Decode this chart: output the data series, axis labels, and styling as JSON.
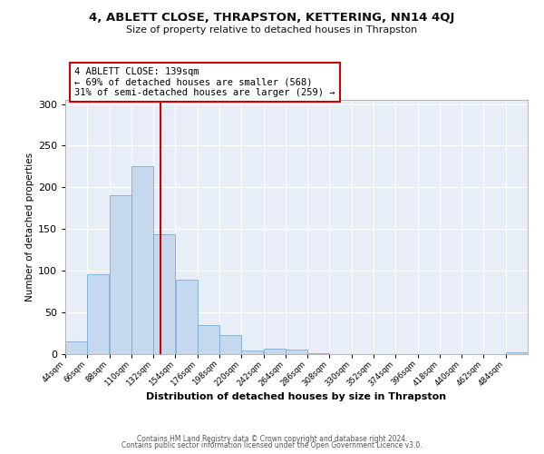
{
  "title": "4, ABLETT CLOSE, THRAPSTON, KETTERING, NN14 4QJ",
  "subtitle": "Size of property relative to detached houses in Thrapston",
  "xlabel": "Distribution of detached houses by size in Thrapston",
  "ylabel": "Number of detached properties",
  "bar_color": "#c5d8ee",
  "bar_edge_color": "#7aadd4",
  "plot_bg_color": "#e8eef8",
  "fig_bg_color": "#ffffff",
  "grid_color": "#ffffff",
  "vline_x": 139,
  "vline_color": "#cc0000",
  "annotation_title": "4 ABLETT CLOSE: 139sqm",
  "annotation_line1": "← 69% of detached houses are smaller (568)",
  "annotation_line2": "31% of semi-detached houses are larger (259) →",
  "annotation_box_color": "#cc0000",
  "bin_edges": [
    44,
    66,
    88,
    110,
    132,
    154,
    176,
    198,
    220,
    242,
    264,
    286,
    308,
    330,
    352,
    374,
    396,
    418,
    440,
    462,
    484,
    506
  ],
  "bin_counts": [
    15,
    96,
    191,
    225,
    144,
    89,
    35,
    23,
    4,
    6,
    5,
    1,
    0,
    0,
    0,
    0,
    0,
    0,
    0,
    0,
    2
  ],
  "ylim": [
    0,
    305
  ],
  "yticks": [
    0,
    50,
    100,
    150,
    200,
    250,
    300
  ],
  "footer_line1": "Contains HM Land Registry data © Crown copyright and database right 2024.",
  "footer_line2": "Contains public sector information licensed under the Open Government Licence v3.0."
}
